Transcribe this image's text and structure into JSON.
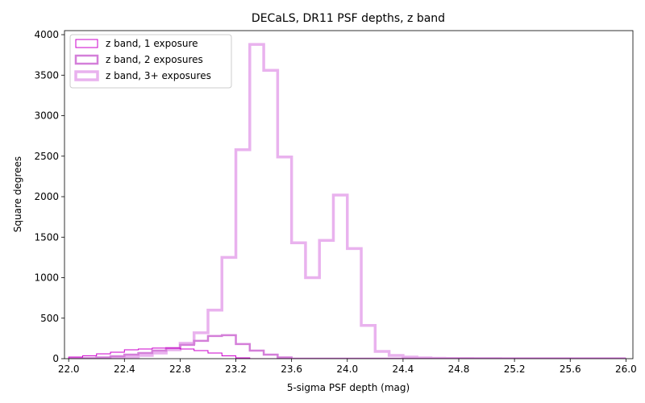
{
  "chart_data": {
    "type": "histogram-step",
    "title": "DECaLS, DR11 PSF depths, z band",
    "xlabel": "5-sigma PSF depth (mag)",
    "ylabel": "Square degrees",
    "xlim": [
      21.97,
      26.05
    ],
    "ylim": [
      0,
      4050
    ],
    "bin_edges": [
      22.0,
      22.1,
      22.2,
      22.3,
      22.4,
      22.5,
      22.6,
      22.7,
      22.8,
      22.9,
      23.0,
      23.1,
      23.2,
      23.3,
      23.4,
      23.5,
      23.6,
      23.7,
      23.8,
      23.9,
      24.0,
      24.1,
      24.2,
      24.3,
      24.4,
      24.5,
      24.6,
      24.7,
      24.8,
      24.9,
      25.0,
      25.1,
      25.2,
      25.3,
      25.4,
      25.5,
      25.6,
      25.7,
      25.8,
      25.9,
      26.0
    ],
    "x_ticks": [
      22.0,
      22.4,
      22.8,
      23.2,
      23.6,
      24.0,
      24.4,
      24.8,
      25.2,
      25.6,
      26.0
    ],
    "x_tick_labels": [
      "22.0",
      "22.4",
      "22.8",
      "23.2",
      "23.6",
      "24.0",
      "24.4",
      "24.8",
      "25.2",
      "25.6",
      "26.0"
    ],
    "y_ticks": [
      0,
      500,
      1000,
      1500,
      2000,
      2500,
      3000,
      3500,
      4000
    ],
    "y_tick_labels": [
      "0",
      "500",
      "1000",
      "1500",
      "2000",
      "2500",
      "3000",
      "3500",
      "4000"
    ],
    "legend_position": "top-left",
    "series": [
      {
        "name": "z band, 1 exposure",
        "color": "#cc00cc",
        "values": [
          20,
          35,
          60,
          80,
          110,
          120,
          130,
          130,
          120,
          100,
          70,
          35,
          10,
          0,
          0,
          0,
          0,
          0,
          0,
          0,
          0,
          0,
          0,
          0,
          0,
          0,
          0,
          0,
          0,
          0,
          0,
          0,
          0,
          0,
          0,
          0,
          0,
          0,
          0,
          0
        ]
      },
      {
        "name": "z band, 2 exposures",
        "color": "#d47fd9",
        "values": [
          0,
          5,
          15,
          30,
          50,
          70,
          100,
          130,
          170,
          220,
          280,
          290,
          180,
          100,
          50,
          15,
          0,
          0,
          0,
          0,
          0,
          0,
          0,
          0,
          0,
          0,
          0,
          0,
          0,
          0,
          0,
          0,
          0,
          0,
          0,
          0,
          0,
          0,
          0,
          0
        ]
      },
      {
        "name": "z band, 3+ exposures",
        "color": "#e9b2ee",
        "values": [
          0,
          0,
          5,
          10,
          20,
          40,
          70,
          110,
          190,
          320,
          600,
          1250,
          2580,
          3880,
          3560,
          2490,
          1430,
          1000,
          1460,
          2020,
          1360,
          410,
          90,
          40,
          20,
          10,
          5,
          3,
          2,
          1,
          1,
          0,
          0,
          0,
          0,
          0,
          0,
          0,
          0,
          0
        ]
      }
    ]
  }
}
